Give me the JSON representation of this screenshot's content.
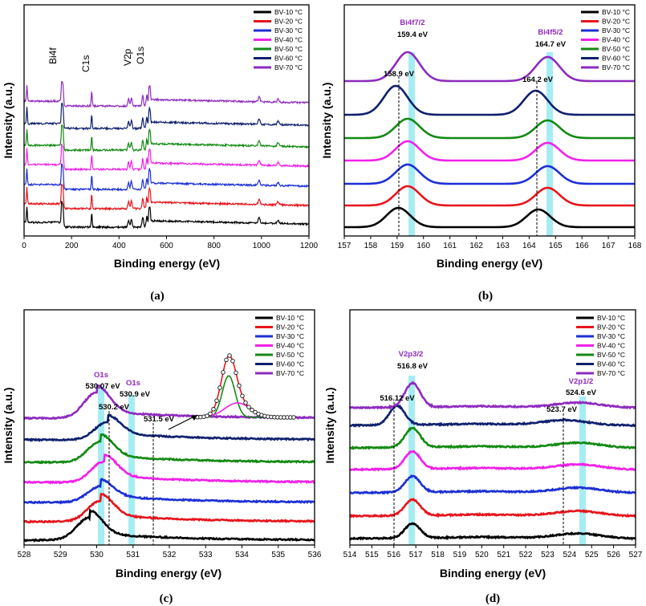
{
  "figure": {
    "colors": [
      "#000000",
      "#e8141c",
      "#1c2fd6",
      "#f021e8",
      "#138a13",
      "#10206e",
      "#8e2bbf"
    ],
    "highlight_color": "#7fe6ee"
  },
  "chart_data": [
    {
      "type": "line",
      "panel": "(a)",
      "xlabel": "Binding energy (eV)",
      "ylabel": "Intensity (a.u.)",
      "xlim": [
        0,
        1200
      ],
      "xticks": [
        "0",
        "200",
        "400",
        "600",
        "800",
        "1000",
        "1200"
      ],
      "series": [
        {
          "name": "BV-10 °C"
        },
        {
          "name": "BV-20 °C"
        },
        {
          "name": "BV-30 °C"
        },
        {
          "name": "BV-40 °C"
        },
        {
          "name": "BV-50 °C"
        },
        {
          "name": "BV-60 °C"
        },
        {
          "name": "BV-70 °C"
        }
      ],
      "peaks": [
        {
          "label": "Bi4f",
          "x": 160
        },
        {
          "label": "C1s",
          "x": 285
        },
        {
          "label": "V2p",
          "x": 517
        },
        {
          "label": "O1s",
          "x": 530
        }
      ]
    },
    {
      "type": "line",
      "panel": "(b)",
      "xlabel": "Binding energy (eV)",
      "ylabel": "Intensity (a.u.)",
      "xlim": [
        157,
        168
      ],
      "xticks": [
        "157",
        "158",
        "159",
        "160",
        "161",
        "162",
        "163",
        "164",
        "165",
        "166",
        "167",
        "168"
      ],
      "series": [
        {
          "name": "BV-10 °C"
        },
        {
          "name": "BV-20 °C"
        },
        {
          "name": "BV-30 °C"
        },
        {
          "name": "BV-40 °C"
        },
        {
          "name": "BV-50 °C"
        },
        {
          "name": "BV-60 °C"
        },
        {
          "name": "BV-70 °C"
        }
      ],
      "annotations": [
        {
          "text": "Bi4f7/2",
          "x": 159.4
        },
        {
          "text": "159.4 eV",
          "x": 159.4
        },
        {
          "text": "158.9 eV",
          "x": 158.9
        },
        {
          "text": "Bi4f5/2",
          "x": 164.7
        },
        {
          "text": "164.7 eV",
          "x": 164.7
        },
        {
          "text": "164.2 eV",
          "x": 164.2
        }
      ]
    },
    {
      "type": "line",
      "panel": "(c)",
      "xlabel": "Binding energy (eV)",
      "ylabel": "Intensity (a.u.)",
      "xlim": [
        528,
        536
      ],
      "xticks": [
        "528",
        "529",
        "530",
        "531",
        "532",
        "533",
        "534",
        "535",
        "536"
      ],
      "series": [
        {
          "name": "BV-10 °C"
        },
        {
          "name": "BV-20 °C"
        },
        {
          "name": "BV-30 °C"
        },
        {
          "name": "BV-40 °C"
        },
        {
          "name": "BV-50 °C"
        },
        {
          "name": "BV-60 °C"
        },
        {
          "name": "BV-70 °C"
        }
      ],
      "annotations": [
        {
          "text": "O1s",
          "x": 530.07
        },
        {
          "text": "530.07 eV",
          "x": 530.07
        },
        {
          "text": "O1s",
          "x": 530.9
        },
        {
          "text": "530.9 eV",
          "x": 530.9
        },
        {
          "text": "530.2 eV",
          "x": 530.2
        },
        {
          "text": "531.5 eV",
          "x": 531.5
        }
      ]
    },
    {
      "type": "line",
      "panel": "(d)",
      "xlabel": "Binding energy (eV)",
      "ylabel": "Intensity (a.u.)",
      "xlim": [
        514,
        527
      ],
      "xticks": [
        "514",
        "515",
        "516",
        "517",
        "518",
        "519",
        "520",
        "521",
        "522",
        "523",
        "524",
        "525",
        "526",
        "527"
      ],
      "series": [
        {
          "name": "BV-10 °C"
        },
        {
          "name": "BV-20 °C"
        },
        {
          "name": "BV-30 °C"
        },
        {
          "name": "BV-40 °C"
        },
        {
          "name": "BV-50 °C"
        },
        {
          "name": "BV-60 °C"
        },
        {
          "name": "BV-70 °C"
        }
      ],
      "annotations": [
        {
          "text": "V2p3/2",
          "x": 516.8
        },
        {
          "text": "516.8 eV",
          "x": 516.8
        },
        {
          "text": "516.12 eV",
          "x": 516.12
        },
        {
          "text": "V2p1/2",
          "x": 524.6
        },
        {
          "text": "524.6 eV",
          "x": 524.6
        },
        {
          "text": "523.7 eV",
          "x": 523.7
        }
      ]
    }
  ]
}
